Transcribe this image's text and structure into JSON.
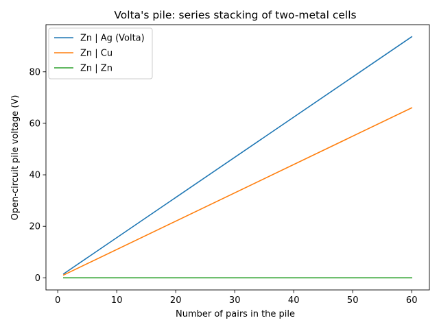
{
  "chart_data": {
    "type": "line",
    "title": "Volta's pile: series stacking of two-metal cells",
    "xlabel": "Number of pairs in the pile",
    "ylabel": "Open-circuit pile voltage (V)",
    "xlim": [
      -2,
      63
    ],
    "ylim": [
      -4.7,
      98.3
    ],
    "xticks": [
      0,
      10,
      20,
      30,
      40,
      50,
      60
    ],
    "yticks": [
      0,
      20,
      40,
      60,
      80
    ],
    "grid": false,
    "legend_position": "top-left",
    "series": [
      {
        "name": "Zn | Ag (Volta)",
        "color": "#1f77b4",
        "x": [
          1,
          60
        ],
        "y": [
          1.56,
          93.6
        ]
      },
      {
        "name": "Zn | Cu",
        "color": "#ff7f0e",
        "x": [
          1,
          60
        ],
        "y": [
          1.1,
          66.0
        ]
      },
      {
        "name": "Zn | Zn",
        "color": "#2ca02c",
        "x": [
          1,
          60
        ],
        "y": [
          0,
          0
        ]
      }
    ]
  }
}
